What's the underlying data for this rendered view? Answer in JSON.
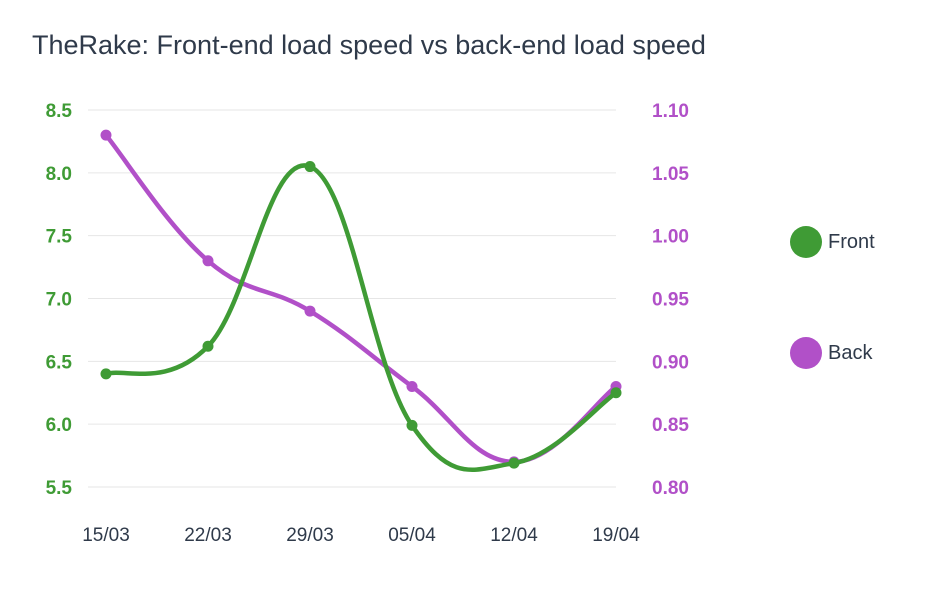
{
  "title": "TheRake: Front-end load speed vs back-end load speed",
  "colors": {
    "front": "#3f9b35",
    "back": "#b150c8",
    "grid": "#e6e6e6",
    "text": "#2f3a4a"
  },
  "legend": [
    {
      "label": "Front",
      "color": "#3f9b35"
    },
    {
      "label": "Back",
      "color": "#b150c8"
    }
  ],
  "chart_data": {
    "type": "line",
    "categories": [
      "15/03",
      "22/03",
      "29/03",
      "05/04",
      "12/04",
      "19/04"
    ],
    "series": [
      {
        "name": "Front",
        "axis": "left",
        "values": [
          6.4,
          6.62,
          8.05,
          5.99,
          5.69,
          6.25
        ]
      },
      {
        "name": "Back",
        "axis": "right",
        "values": [
          1.08,
          0.98,
          0.94,
          0.88,
          0.82,
          0.88
        ]
      }
    ],
    "y_left": {
      "ticks": [
        "5.5",
        "6.0",
        "6.5",
        "7.0",
        "7.5",
        "8.0",
        "8.5"
      ],
      "lim": [
        5.5,
        8.5
      ]
    },
    "y_right": {
      "ticks": [
        "0.80",
        "0.85",
        "0.90",
        "0.95",
        "1.00",
        "1.05",
        "1.10"
      ],
      "lim": [
        0.8,
        1.1
      ]
    },
    "grid": true,
    "legend_position": "right"
  }
}
